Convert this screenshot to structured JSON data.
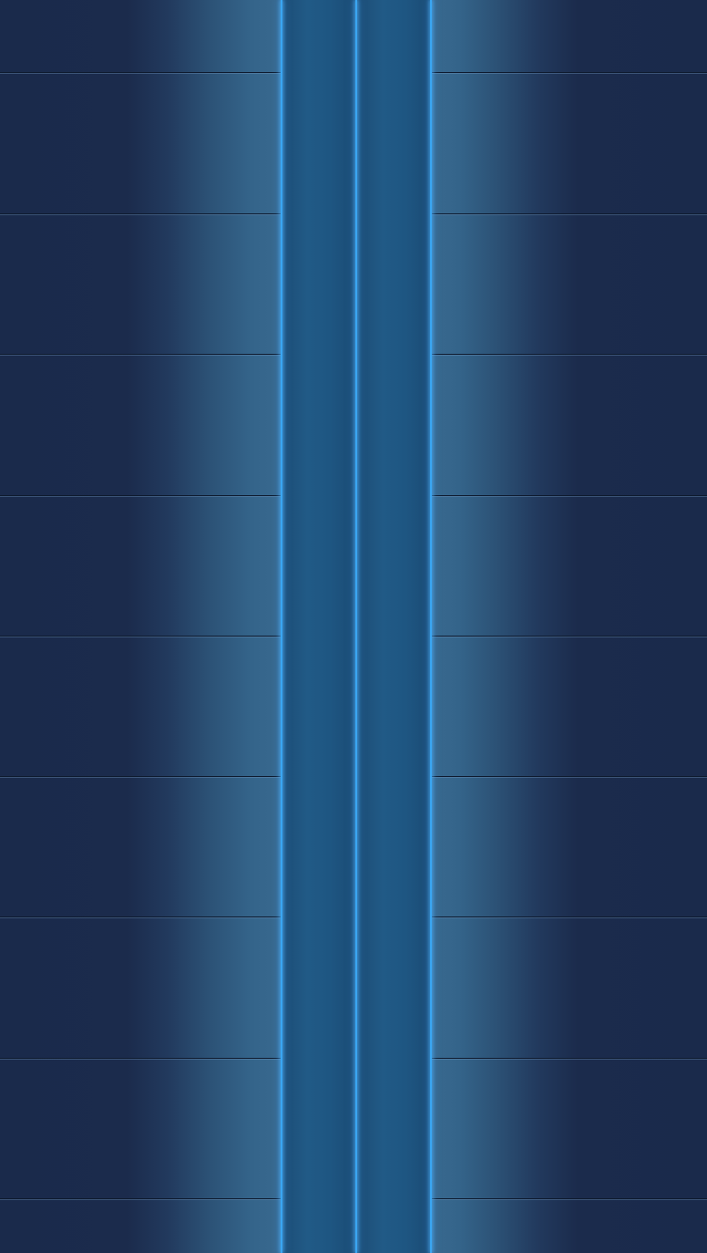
{
  "wallpaper": {
    "description_name": "blue-panel-wallpaper",
    "panel_rows": 9,
    "colors": {
      "panel_dark": "#1a2a4b",
      "panel_light": "#39698f",
      "channel": "#215a86",
      "glow": "#3aa6f2",
      "seam": "#0e1a2e"
    }
  }
}
